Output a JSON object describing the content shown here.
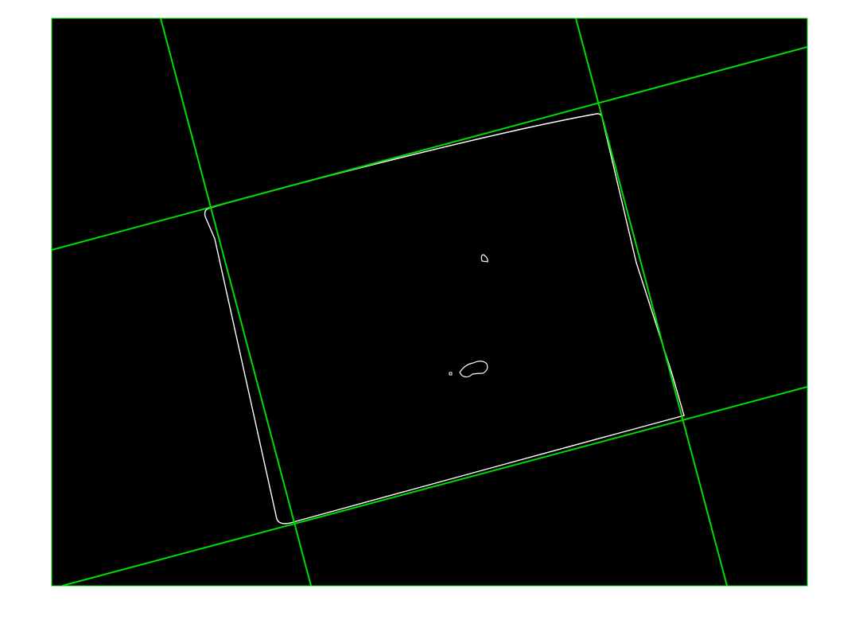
{
  "figure": {
    "background_color": "#000000",
    "page_color": "#ffffff",
    "line_color": "#00dd00",
    "edge_color": "#ffffff"
  }
}
